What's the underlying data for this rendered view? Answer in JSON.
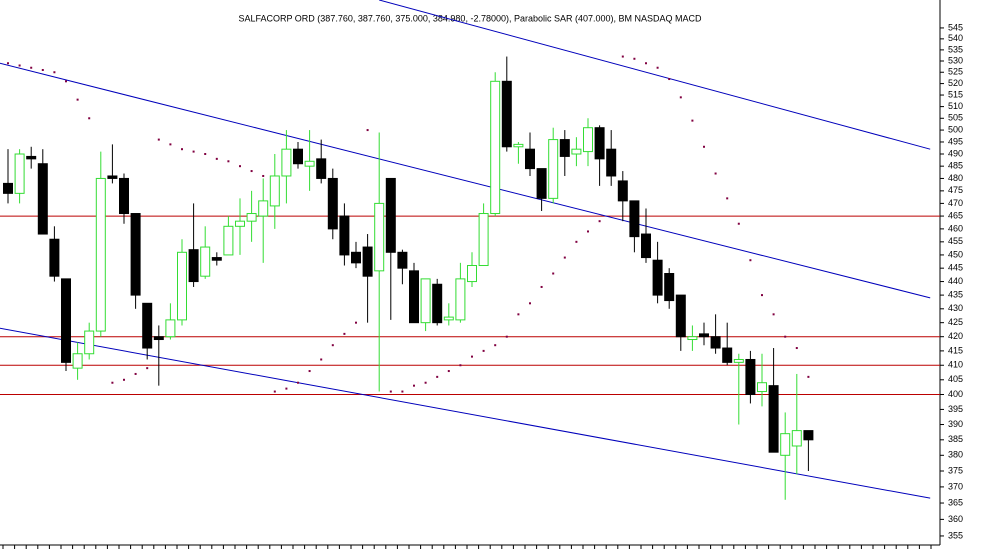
{
  "chart_data": {
    "type": "candlestick",
    "title": "SALFACORP ORD (387.760, 387.760, 375.000, 384.980, -2.78000), Parabolic SAR (407.000), BM NASDAQ MACD",
    "open": [
      478,
      474,
      489,
      486,
      456,
      441,
      409,
      414,
      422,
      481,
      480,
      466,
      432,
      420,
      420,
      426,
      452,
      442,
      449,
      450,
      461,
      463,
      465,
      469,
      481,
      492,
      485,
      488,
      480,
      465,
      451,
      453,
      444,
      480,
      451,
      444,
      425,
      439,
      426,
      426,
      440,
      446,
      466,
      521,
      493,
      492,
      484,
      472,
      496,
      490,
      491,
      501,
      492,
      479,
      471,
      458,
      448,
      443,
      435,
      419,
      421,
      420,
      416,
      411,
      412,
      401,
      403,
      380,
      383,
      388
    ],
    "high": [
      492,
      492,
      493,
      492,
      461,
      441,
      418,
      425,
      491,
      494,
      482,
      466,
      432,
      424,
      432,
      456,
      470,
      461,
      451,
      465,
      472,
      475,
      480,
      490,
      500,
      495,
      500,
      496,
      484,
      470,
      455,
      458,
      499,
      480,
      452,
      447,
      441,
      441,
      432,
      447,
      451,
      470,
      525,
      532,
      495,
      499,
      484,
      501,
      500,
      497,
      505,
      502,
      500,
      483,
      471,
      468,
      455,
      445,
      435,
      424,
      425,
      428,
      425,
      414,
      415,
      414,
      416,
      394,
      407,
      388
    ],
    "low": [
      470,
      470,
      484,
      458,
      440,
      408,
      405,
      412,
      420,
      478,
      462,
      430,
      412,
      403,
      419,
      424,
      438,
      441,
      446,
      450,
      450,
      455,
      447,
      460,
      470,
      484,
      475,
      478,
      456,
      446,
      445,
      425,
      401,
      426,
      439,
      425,
      422,
      424,
      424,
      425,
      438,
      446,
      465,
      491,
      486,
      481,
      467,
      470,
      481,
      485,
      485,
      477,
      477,
      463,
      451,
      447,
      432,
      430,
      415,
      415,
      417,
      414,
      410,
      390,
      397,
      396,
      381,
      366,
      374,
      375
    ],
    "close": [
      474,
      490,
      488,
      458,
      442,
      411,
      414,
      422,
      480,
      480,
      466,
      435,
      416,
      419,
      426,
      451,
      440,
      453,
      448,
      461,
      463,
      466,
      471,
      481,
      492,
      486,
      487,
      480,
      460,
      450,
      447,
      442,
      470,
      451,
      445,
      425,
      441,
      425,
      427,
      441,
      446,
      466,
      521,
      493,
      494,
      484,
      472,
      496,
      489,
      492,
      501,
      488,
      481,
      471,
      457,
      449,
      435,
      433,
      420,
      420,
      420,
      416,
      411,
      412,
      400,
      404,
      381,
      387,
      388,
      385
    ],
    "sar": [
      529,
      528,
      527,
      526,
      525,
      521,
      513,
      505,
      null,
      404,
      405,
      407,
      409,
      496,
      494,
      492,
      491,
      490,
      488,
      487,
      485,
      483,
      481,
      401,
      402,
      404,
      408,
      412,
      417,
      421,
      425,
      500,
      null,
      401,
      401,
      403,
      404,
      406,
      408,
      410,
      413,
      415,
      417,
      420,
      428,
      432,
      438,
      443,
      449,
      455,
      459,
      463,
      null,
      532,
      531,
      529,
      527,
      522,
      514,
      504,
      493,
      482,
      472,
      462,
      448,
      435,
      428,
      420,
      416,
      406
    ],
    "levels": [
      465,
      420,
      410,
      400
    ],
    "trendlines": [
      {
        "x": [
          -0.7,
          79.5
        ],
        "y": [
          529,
          434
        ]
      },
      {
        "x": [
          32,
          79.5
        ],
        "y": [
          558,
          492
        ]
      },
      {
        "x": [
          -0.7,
          79.5
        ],
        "y": [
          423,
          366.5
        ]
      }
    ],
    "up_color": "#33dd33",
    "down_color": "#000000",
    "sar_color": "#800040",
    "level_color": "#bb0000",
    "trend_color": "#0000bb",
    "log": true,
    "ylim": [
      352.3,
      558
    ],
    "yticks": [
      355,
      360,
      365,
      370,
      375,
      380,
      385,
      390,
      395,
      400,
      405,
      410,
      415,
      420,
      425,
      430,
      435,
      440,
      445,
      450,
      455,
      460,
      465,
      470,
      475,
      480,
      485,
      490,
      495,
      500,
      505,
      510,
      515,
      520,
      525,
      530,
      535,
      540,
      545
    ]
  }
}
